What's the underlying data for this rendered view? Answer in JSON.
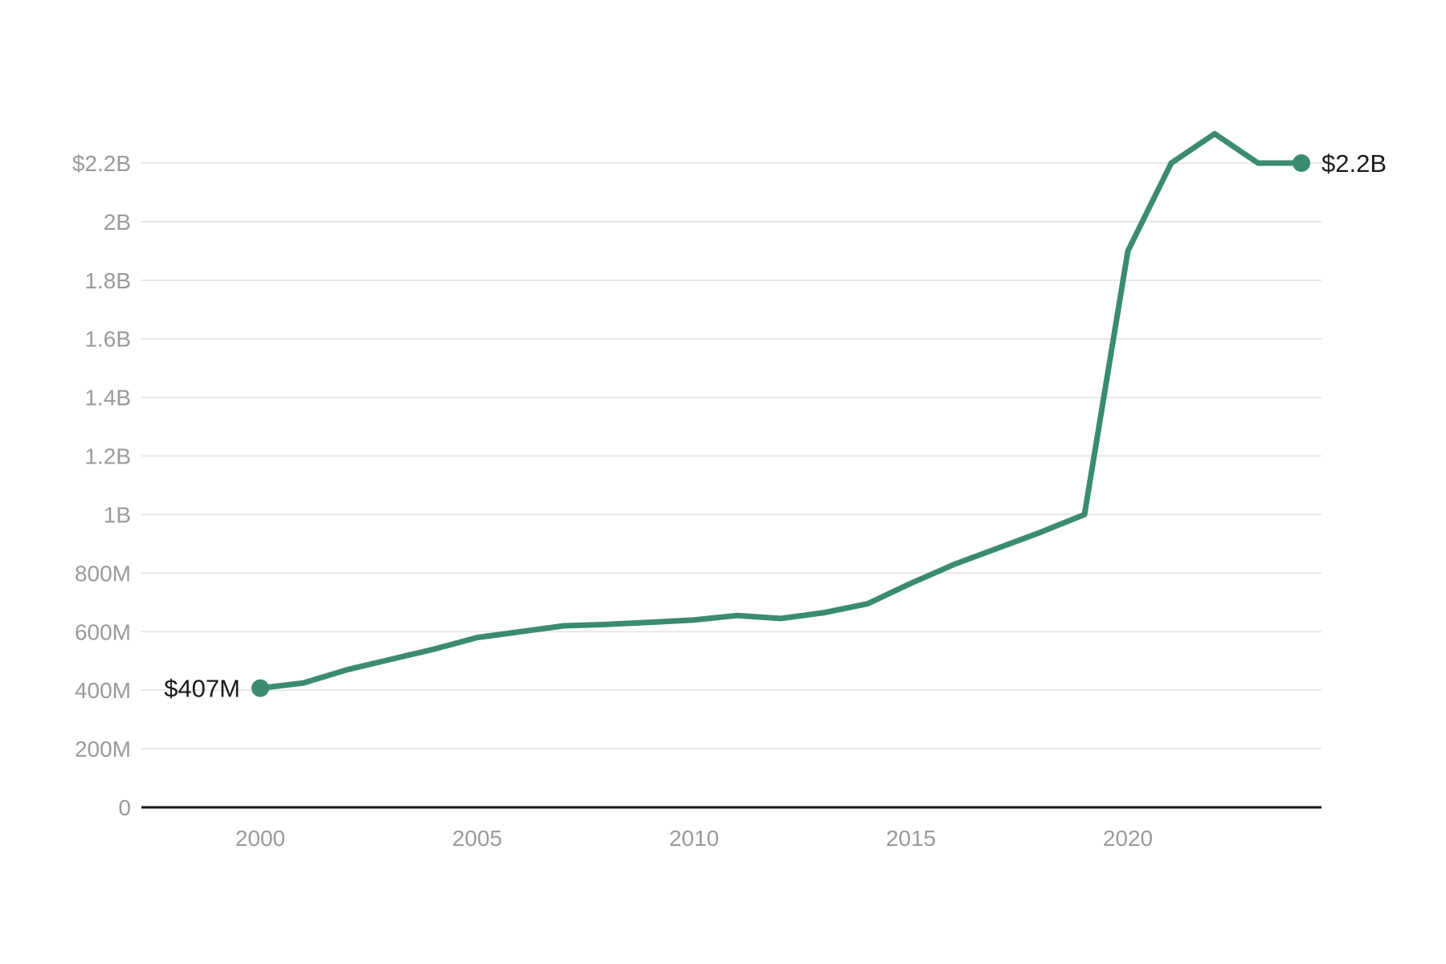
{
  "chart_data": {
    "type": "line",
    "title": "",
    "xlabel": "",
    "ylabel": "",
    "unit_note": "values in millions of USD",
    "x": [
      2000,
      2001,
      2002,
      2003,
      2004,
      2005,
      2006,
      2007,
      2008,
      2009,
      2010,
      2011,
      2012,
      2013,
      2014,
      2015,
      2016,
      2017,
      2018,
      2019,
      2020,
      2021,
      2022,
      2023,
      2024
    ],
    "values": [
      407,
      425,
      470,
      505,
      540,
      580,
      600,
      620,
      625,
      632,
      640,
      655,
      645,
      665,
      695,
      765,
      830,
      885,
      940,
      1000,
      1900,
      2200,
      2300,
      2200,
      2200
    ],
    "series_name": "",
    "start_point_label": "$407M",
    "end_point_label": "$2.2B",
    "y_ticks": [
      {
        "value": 2200,
        "label": "$2.2B"
      },
      {
        "value": 2000,
        "label": "2B"
      },
      {
        "value": 1800,
        "label": "1.8B"
      },
      {
        "value": 1600,
        "label": "1.6B"
      },
      {
        "value": 1400,
        "label": "1.4B"
      },
      {
        "value": 1200,
        "label": "1.2B"
      },
      {
        "value": 1000,
        "label": "1B"
      },
      {
        "value": 800,
        "label": "800M"
      },
      {
        "value": 600,
        "label": "600M"
      },
      {
        "value": 400,
        "label": "400M"
      },
      {
        "value": 200,
        "label": "200M"
      },
      {
        "value": 0,
        "label": "0"
      }
    ],
    "x_ticks": [
      {
        "value": 2000,
        "label": "2000"
      },
      {
        "value": 2005,
        "label": "2005"
      },
      {
        "value": 2010,
        "label": "2010"
      },
      {
        "value": 2015,
        "label": "2015"
      },
      {
        "value": 2020,
        "label": "2020"
      }
    ],
    "xlim": [
      2000,
      2024
    ],
    "ylim": [
      0,
      2400
    ],
    "grid": true,
    "legend": false,
    "markers": "endpoints-only",
    "colors": {
      "line": "#3b8c6e",
      "grid": "#e7e7e7",
      "axis": "#161616",
      "tick_text": "#9a9a9a",
      "point_label_text": "#1b1b1b",
      "background": "#ffffff"
    }
  }
}
